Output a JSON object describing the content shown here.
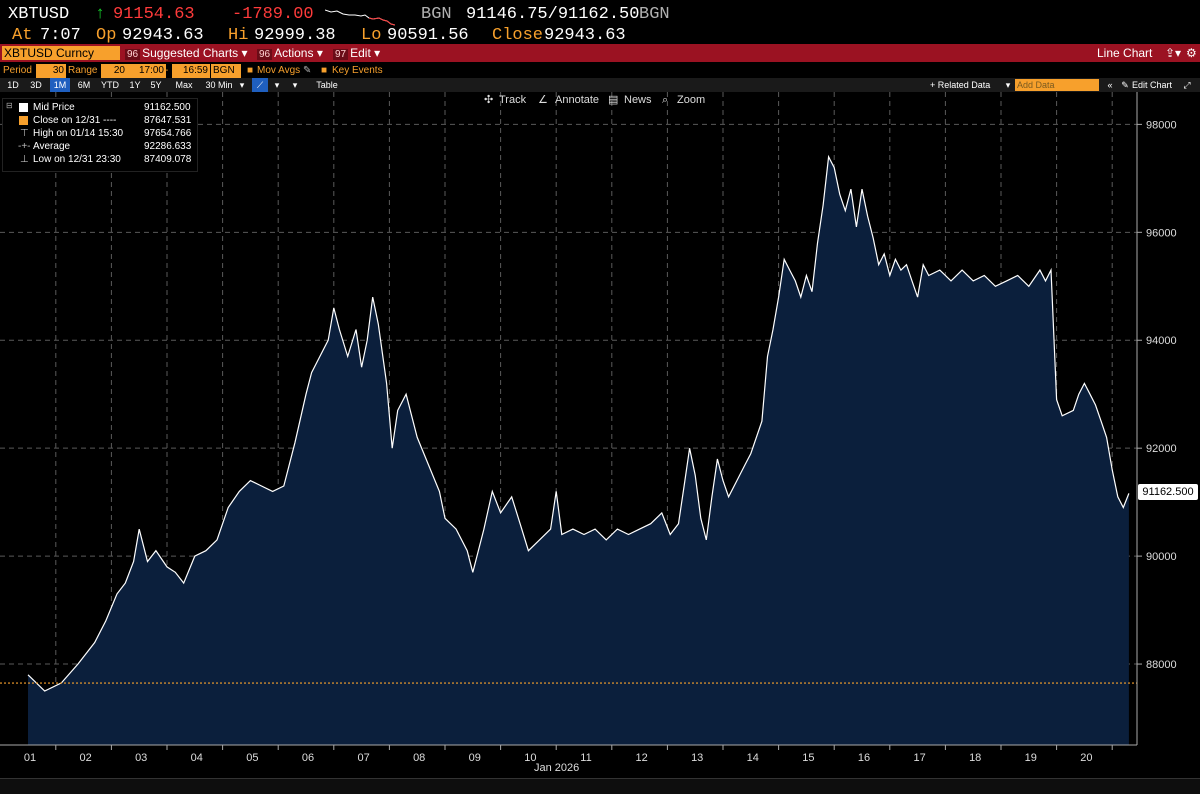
{
  "header": {
    "ticker": "XBTUSD",
    "arrow": "↑",
    "last_price": "91154.63",
    "net_change": "-1789.00",
    "source1": "BGN",
    "bid_ask": "91146.75/91162.50",
    "source2": "BGN",
    "at_label": "At",
    "at_time": "7:07",
    "open_label": "Op",
    "open_value": "92943.63",
    "hi_label": "Hi",
    "hi_value": "92999.38",
    "lo_label": "Lo",
    "lo_value": "90591.56",
    "close_label": "Close",
    "close_value": "92943.63"
  },
  "menubar": {
    "security": "XBTUSD Curncy",
    "suggested_num": "96",
    "suggested": "Suggested Charts",
    "actions_num": "96",
    "actions": "Actions",
    "edit_num": "97",
    "edit": "Edit",
    "chart_type": "Line Chart"
  },
  "settings": {
    "period_label": "Period",
    "period_value": "30",
    "range_label": "Range",
    "range_value": "20",
    "time_from": "17:00",
    "time_to": "16:59",
    "source": "BGN",
    "mov_avgs": "Mov Avgs",
    "key_events": "Key Events"
  },
  "tabs": [
    "1D",
    "3D",
    "1M",
    "6M",
    "YTD",
    "1Y",
    "5Y",
    "Max",
    "30 Min"
  ],
  "selected_tab": "1M",
  "tab_row": {
    "table": "Table",
    "related_data": "+ Related Data",
    "add_data_placeholder": "Add Data",
    "edit_chart": "Edit Chart"
  },
  "toolbar": {
    "track": "Track",
    "annotate": "Annotate",
    "news": "News",
    "zoom": "Zoom"
  },
  "legend": [
    {
      "label": "Mid Price",
      "value": "91162.500"
    },
    {
      "label": "Close on 12/31 ----",
      "value": "87647.531"
    },
    {
      "label": "High on 01/14 15:30",
      "value": "97654.766"
    },
    {
      "label": "Average",
      "value": "92286.633"
    },
    {
      "label": "Low on 12/31 23:30",
      "value": "87409.078"
    }
  ],
  "price_tag": "91162.500",
  "colors": {
    "area_fill": "#0b1f3c",
    "line": "#ffffff",
    "close_line": "#f7a02c",
    "menubar": "#9b1222",
    "amber": "#f7a02c",
    "up": "#17d12d",
    "down": "#ff3b3b"
  },
  "chart_data": {
    "type": "area",
    "x_axis_label": "Jan 2026",
    "categories": [
      "01",
      "02",
      "03",
      "04",
      "05",
      "06",
      "07",
      "08",
      "09",
      "10",
      "11",
      "12",
      "13",
      "14",
      "15",
      "16",
      "17",
      "18",
      "19",
      "20"
    ],
    "y_ticks": [
      88000,
      90000,
      92000,
      94000,
      96000,
      98000
    ],
    "ylim": [
      86500,
      98600
    ],
    "prev_close": 87647.531,
    "series": [
      {
        "points": [
          [
            0.0,
            87800
          ],
          [
            0.3,
            87500
          ],
          [
            0.6,
            87650
          ],
          [
            0.9,
            88000
          ],
          [
            1.2,
            88400
          ],
          [
            1.4,
            88800
          ],
          [
            1.6,
            89300
          ],
          [
            1.75,
            89500
          ],
          [
            1.9,
            89900
          ],
          [
            2.0,
            90500
          ],
          [
            2.15,
            89900
          ],
          [
            2.3,
            90100
          ],
          [
            2.5,
            89800
          ],
          [
            2.65,
            89700
          ],
          [
            2.8,
            89500
          ],
          [
            3.0,
            90000
          ],
          [
            3.2,
            90100
          ],
          [
            3.4,
            90300
          ],
          [
            3.6,
            90900
          ],
          [
            3.8,
            91200
          ],
          [
            4.0,
            91400
          ],
          [
            4.2,
            91300
          ],
          [
            4.4,
            91200
          ],
          [
            4.6,
            91300
          ],
          [
            4.8,
            92100
          ],
          [
            5.0,
            93000
          ],
          [
            5.1,
            93400
          ],
          [
            5.25,
            93700
          ],
          [
            5.4,
            94000
          ],
          [
            5.5,
            94600
          ],
          [
            5.6,
            94200
          ],
          [
            5.75,
            93700
          ],
          [
            5.9,
            94200
          ],
          [
            6.0,
            93500
          ],
          [
            6.1,
            94000
          ],
          [
            6.2,
            94800
          ],
          [
            6.3,
            94300
          ],
          [
            6.45,
            93200
          ],
          [
            6.55,
            92000
          ],
          [
            6.65,
            92700
          ],
          [
            6.8,
            93000
          ],
          [
            7.0,
            92200
          ],
          [
            7.2,
            91700
          ],
          [
            7.4,
            91200
          ],
          [
            7.5,
            90700
          ],
          [
            7.7,
            90500
          ],
          [
            7.9,
            90100
          ],
          [
            8.0,
            89700
          ],
          [
            8.2,
            90500
          ],
          [
            8.35,
            91200
          ],
          [
            8.5,
            90800
          ],
          [
            8.7,
            91100
          ],
          [
            8.85,
            90600
          ],
          [
            9.0,
            90100
          ],
          [
            9.2,
            90300
          ],
          [
            9.4,
            90500
          ],
          [
            9.5,
            91200
          ],
          [
            9.6,
            90400
          ],
          [
            9.8,
            90500
          ],
          [
            10.0,
            90400
          ],
          [
            10.2,
            90500
          ],
          [
            10.4,
            90300
          ],
          [
            10.6,
            90500
          ],
          [
            10.8,
            90400
          ],
          [
            11.0,
            90500
          ],
          [
            11.2,
            90600
          ],
          [
            11.4,
            90800
          ],
          [
            11.55,
            90400
          ],
          [
            11.7,
            90600
          ],
          [
            11.8,
            91300
          ],
          [
            11.9,
            92000
          ],
          [
            12.0,
            91500
          ],
          [
            12.1,
            90700
          ],
          [
            12.2,
            90300
          ],
          [
            12.3,
            91100
          ],
          [
            12.4,
            91800
          ],
          [
            12.5,
            91400
          ],
          [
            12.6,
            91100
          ],
          [
            12.75,
            91400
          ],
          [
            12.9,
            91700
          ],
          [
            13.0,
            91900
          ],
          [
            13.2,
            92500
          ],
          [
            13.3,
            93700
          ],
          [
            13.4,
            94200
          ],
          [
            13.5,
            94800
          ],
          [
            13.6,
            95500
          ],
          [
            13.7,
            95300
          ],
          [
            13.8,
            95100
          ],
          [
            13.9,
            94800
          ],
          [
            14.0,
            95200
          ],
          [
            14.1,
            94900
          ],
          [
            14.2,
            95800
          ],
          [
            14.3,
            96500
          ],
          [
            14.4,
            97400
          ],
          [
            14.5,
            97200
          ],
          [
            14.6,
            96700
          ],
          [
            14.7,
            96400
          ],
          [
            14.8,
            96800
          ],
          [
            14.9,
            96100
          ],
          [
            15.0,
            96800
          ],
          [
            15.1,
            96300
          ],
          [
            15.2,
            95900
          ],
          [
            15.3,
            95400
          ],
          [
            15.4,
            95600
          ],
          [
            15.5,
            95200
          ],
          [
            15.6,
            95500
          ],
          [
            15.7,
            95300
          ],
          [
            15.8,
            95400
          ],
          [
            15.9,
            95100
          ],
          [
            16.0,
            94800
          ],
          [
            16.1,
            95400
          ],
          [
            16.2,
            95200
          ],
          [
            16.4,
            95300
          ],
          [
            16.6,
            95100
          ],
          [
            16.8,
            95300
          ],
          [
            17.0,
            95100
          ],
          [
            17.2,
            95200
          ],
          [
            17.4,
            95000
          ],
          [
            17.6,
            95100
          ],
          [
            17.8,
            95200
          ],
          [
            18.0,
            95000
          ],
          [
            18.2,
            95300
          ],
          [
            18.3,
            95100
          ],
          [
            18.4,
            95300
          ],
          [
            18.5,
            92900
          ],
          [
            18.6,
            92600
          ],
          [
            18.8,
            92700
          ],
          [
            18.9,
            93000
          ],
          [
            19.0,
            93200
          ],
          [
            19.1,
            93000
          ],
          [
            19.2,
            92800
          ],
          [
            19.3,
            92500
          ],
          [
            19.4,
            92200
          ],
          [
            19.5,
            91600
          ],
          [
            19.6,
            91100
          ],
          [
            19.7,
            90900
          ],
          [
            19.8,
            91162.5
          ]
        ]
      }
    ]
  }
}
